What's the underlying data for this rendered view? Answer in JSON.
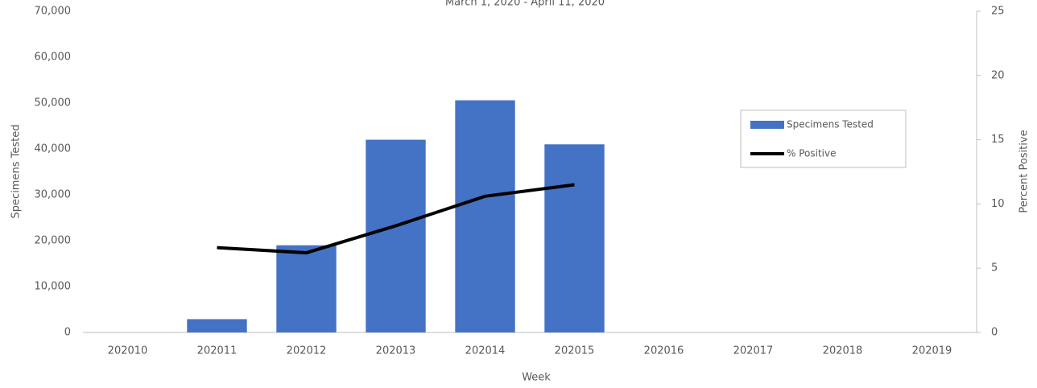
{
  "chart_data": {
    "type": "bar",
    "subtitle": "March 1, 2020 - April 11, 2020",
    "x_label": "Week",
    "y_label": "Specimens Tested",
    "y2_label": "Percent Positive",
    "categories": [
      "202010",
      "202011",
      "202012",
      "202013",
      "202014",
      "202015",
      "202016",
      "202017",
      "202018",
      "202019"
    ],
    "series": [
      {
        "name": "Specimens Tested",
        "type": "bar",
        "color": "#4472c4",
        "values": [
          null,
          2900,
          19000,
          42000,
          50600,
          41000,
          null,
          null,
          null,
          null
        ]
      },
      {
        "name": "% Positive",
        "type": "line",
        "axis": "y2",
        "color": "#000000",
        "values": [
          null,
          6.6,
          6.2,
          8.3,
          10.6,
          11.5,
          null,
          null,
          null,
          null
        ]
      }
    ],
    "ylim": [
      0,
      70000
    ],
    "yticks": [
      0,
      {
        "value": 10000,
        "label": "10,000"
      },
      {
        "value": 20000,
        "label": "20,000"
      },
      {
        "value": 30000,
        "label": "30,000"
      },
      {
        "value": 40000,
        "label": "40,000"
      },
      {
        "value": 50000,
        "label": "50,000"
      },
      {
        "value": 60000,
        "label": "60,000"
      },
      {
        "value": 70000,
        "label": "70,000"
      }
    ],
    "y2lim": [
      0,
      25
    ],
    "y2ticks": [
      0,
      5,
      10,
      15,
      20,
      25
    ],
    "legend": "right"
  }
}
